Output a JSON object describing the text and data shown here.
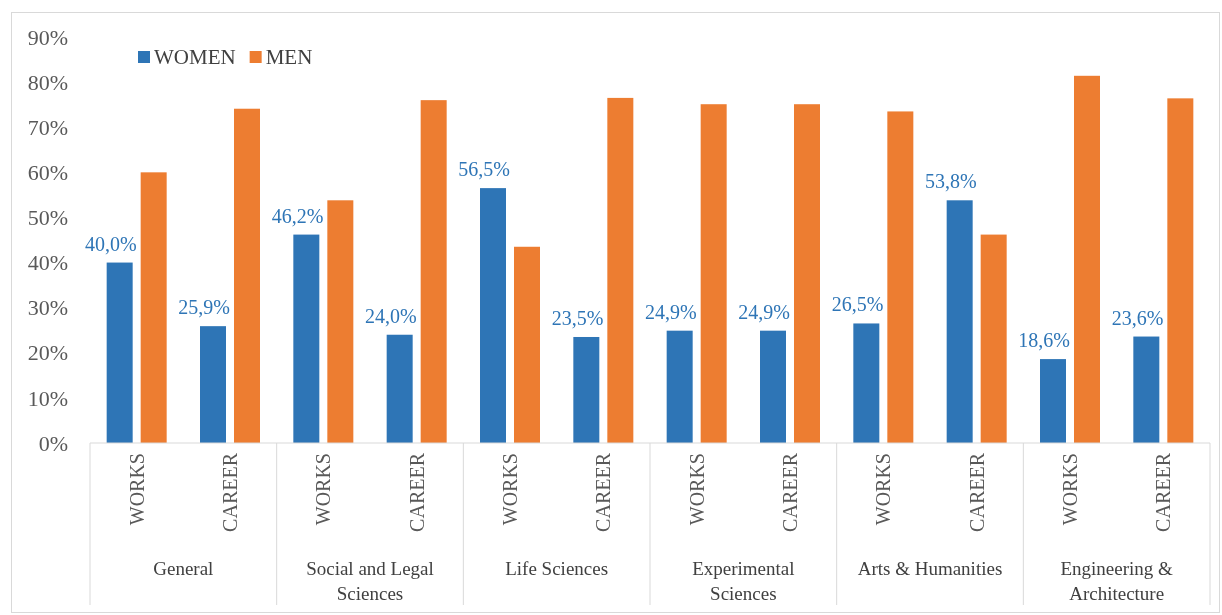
{
  "chart_data": {
    "type": "bar",
    "categories": [
      "WORKS",
      "CAREER",
      "WORKS",
      "CAREER",
      "WORKS",
      "CAREER",
      "WORKS",
      "CAREER",
      "WORKS",
      "CAREER",
      "WORKS",
      "CAREER"
    ],
    "series": [
      {
        "name": "WOMEN",
        "color": "#2e75b6",
        "values": [
          40.0,
          25.9,
          46.2,
          24.0,
          56.5,
          23.5,
          24.9,
          24.9,
          26.5,
          53.8,
          18.6,
          23.6
        ],
        "value_labels": [
          "40,0%",
          "25,9%",
          "46,2%",
          "24,0%",
          "56,5%",
          "23,5%",
          "24,9%",
          "24,9%",
          "26,5%",
          "53,8%",
          "18,6%",
          "23,6%"
        ]
      },
      {
        "name": "MEN",
        "color": "#ed7d31",
        "values": [
          60.0,
          74.1,
          53.8,
          76.0,
          43.5,
          76.5,
          75.1,
          75.1,
          73.5,
          46.2,
          81.4,
          76.4
        ]
      }
    ],
    "ylim": [
      0,
      90
    ],
    "yticks": [
      {
        "value": 0,
        "label": "0%"
      },
      {
        "value": 10,
        "label": "10%"
      },
      {
        "value": 20,
        "label": "20%"
      },
      {
        "value": 30,
        "label": "30%"
      },
      {
        "value": 40,
        "label": "40%"
      },
      {
        "value": 50,
        "label": "50%"
      },
      {
        "value": 60,
        "label": "60%"
      },
      {
        "value": 70,
        "label": "70%"
      },
      {
        "value": 80,
        "label": "80%"
      },
      {
        "value": 90,
        "label": "90%"
      }
    ],
    "grid": false,
    "legend": "top left",
    "annotations": [
      "General",
      "Social and Legal Sciences",
      "Life Sciences",
      "Experimental Sciences",
      "Arts & Humanities",
      "Engineering & Architecture"
    ]
  }
}
